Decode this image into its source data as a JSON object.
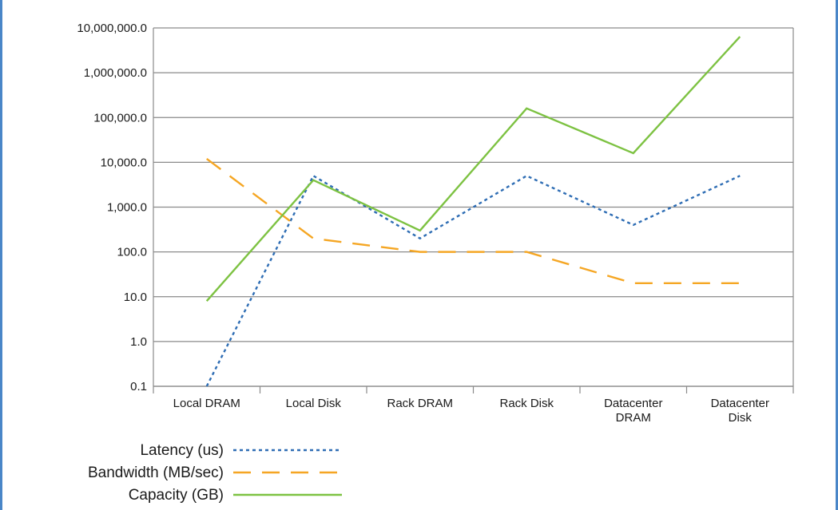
{
  "chart_data": {
    "type": "line",
    "title": "",
    "xlabel": "",
    "ylabel": "",
    "y_scale": "log",
    "ylim": [
      0.1,
      10000000
    ],
    "y_ticks": [
      {
        "value": 0.1,
        "label": "0.1"
      },
      {
        "value": 1,
        "label": "1.0"
      },
      {
        "value": 10,
        "label": "10.0"
      },
      {
        "value": 100,
        "label": "100.0"
      },
      {
        "value": 1000,
        "label": "1,000.0"
      },
      {
        "value": 10000,
        "label": "10,000.0"
      },
      {
        "value": 100000,
        "label": "100,000.0"
      },
      {
        "value": 1000000,
        "label": "1,000,000.0"
      },
      {
        "value": 10000000,
        "label": "10,000,000.0"
      }
    ],
    "grid": "horizontal",
    "legend_position": "bottom-left",
    "categories": [
      [
        "Local DRAM"
      ],
      [
        "Local Disk"
      ],
      [
        "Rack DRAM"
      ],
      [
        "Rack Disk"
      ],
      [
        "Datacenter",
        "DRAM"
      ],
      [
        "Datacenter",
        "Disk"
      ]
    ],
    "series": [
      {
        "name": "Latency (us)",
        "values": [
          0.1,
          5000,
          200,
          5000,
          400,
          5000
        ],
        "color": "#2e6db4",
        "dash": "4 4"
      },
      {
        "name": "Bandwidth (MB/sec)",
        "values": [
          12000,
          200,
          100,
          100,
          20,
          20
        ],
        "color": "#f5a623",
        "dash": "22 14"
      },
      {
        "name": "Capacity (GB)",
        "values": [
          8,
          4000,
          300,
          160000,
          16000,
          6400000
        ],
        "color": "#7dc242",
        "dash": ""
      }
    ]
  }
}
